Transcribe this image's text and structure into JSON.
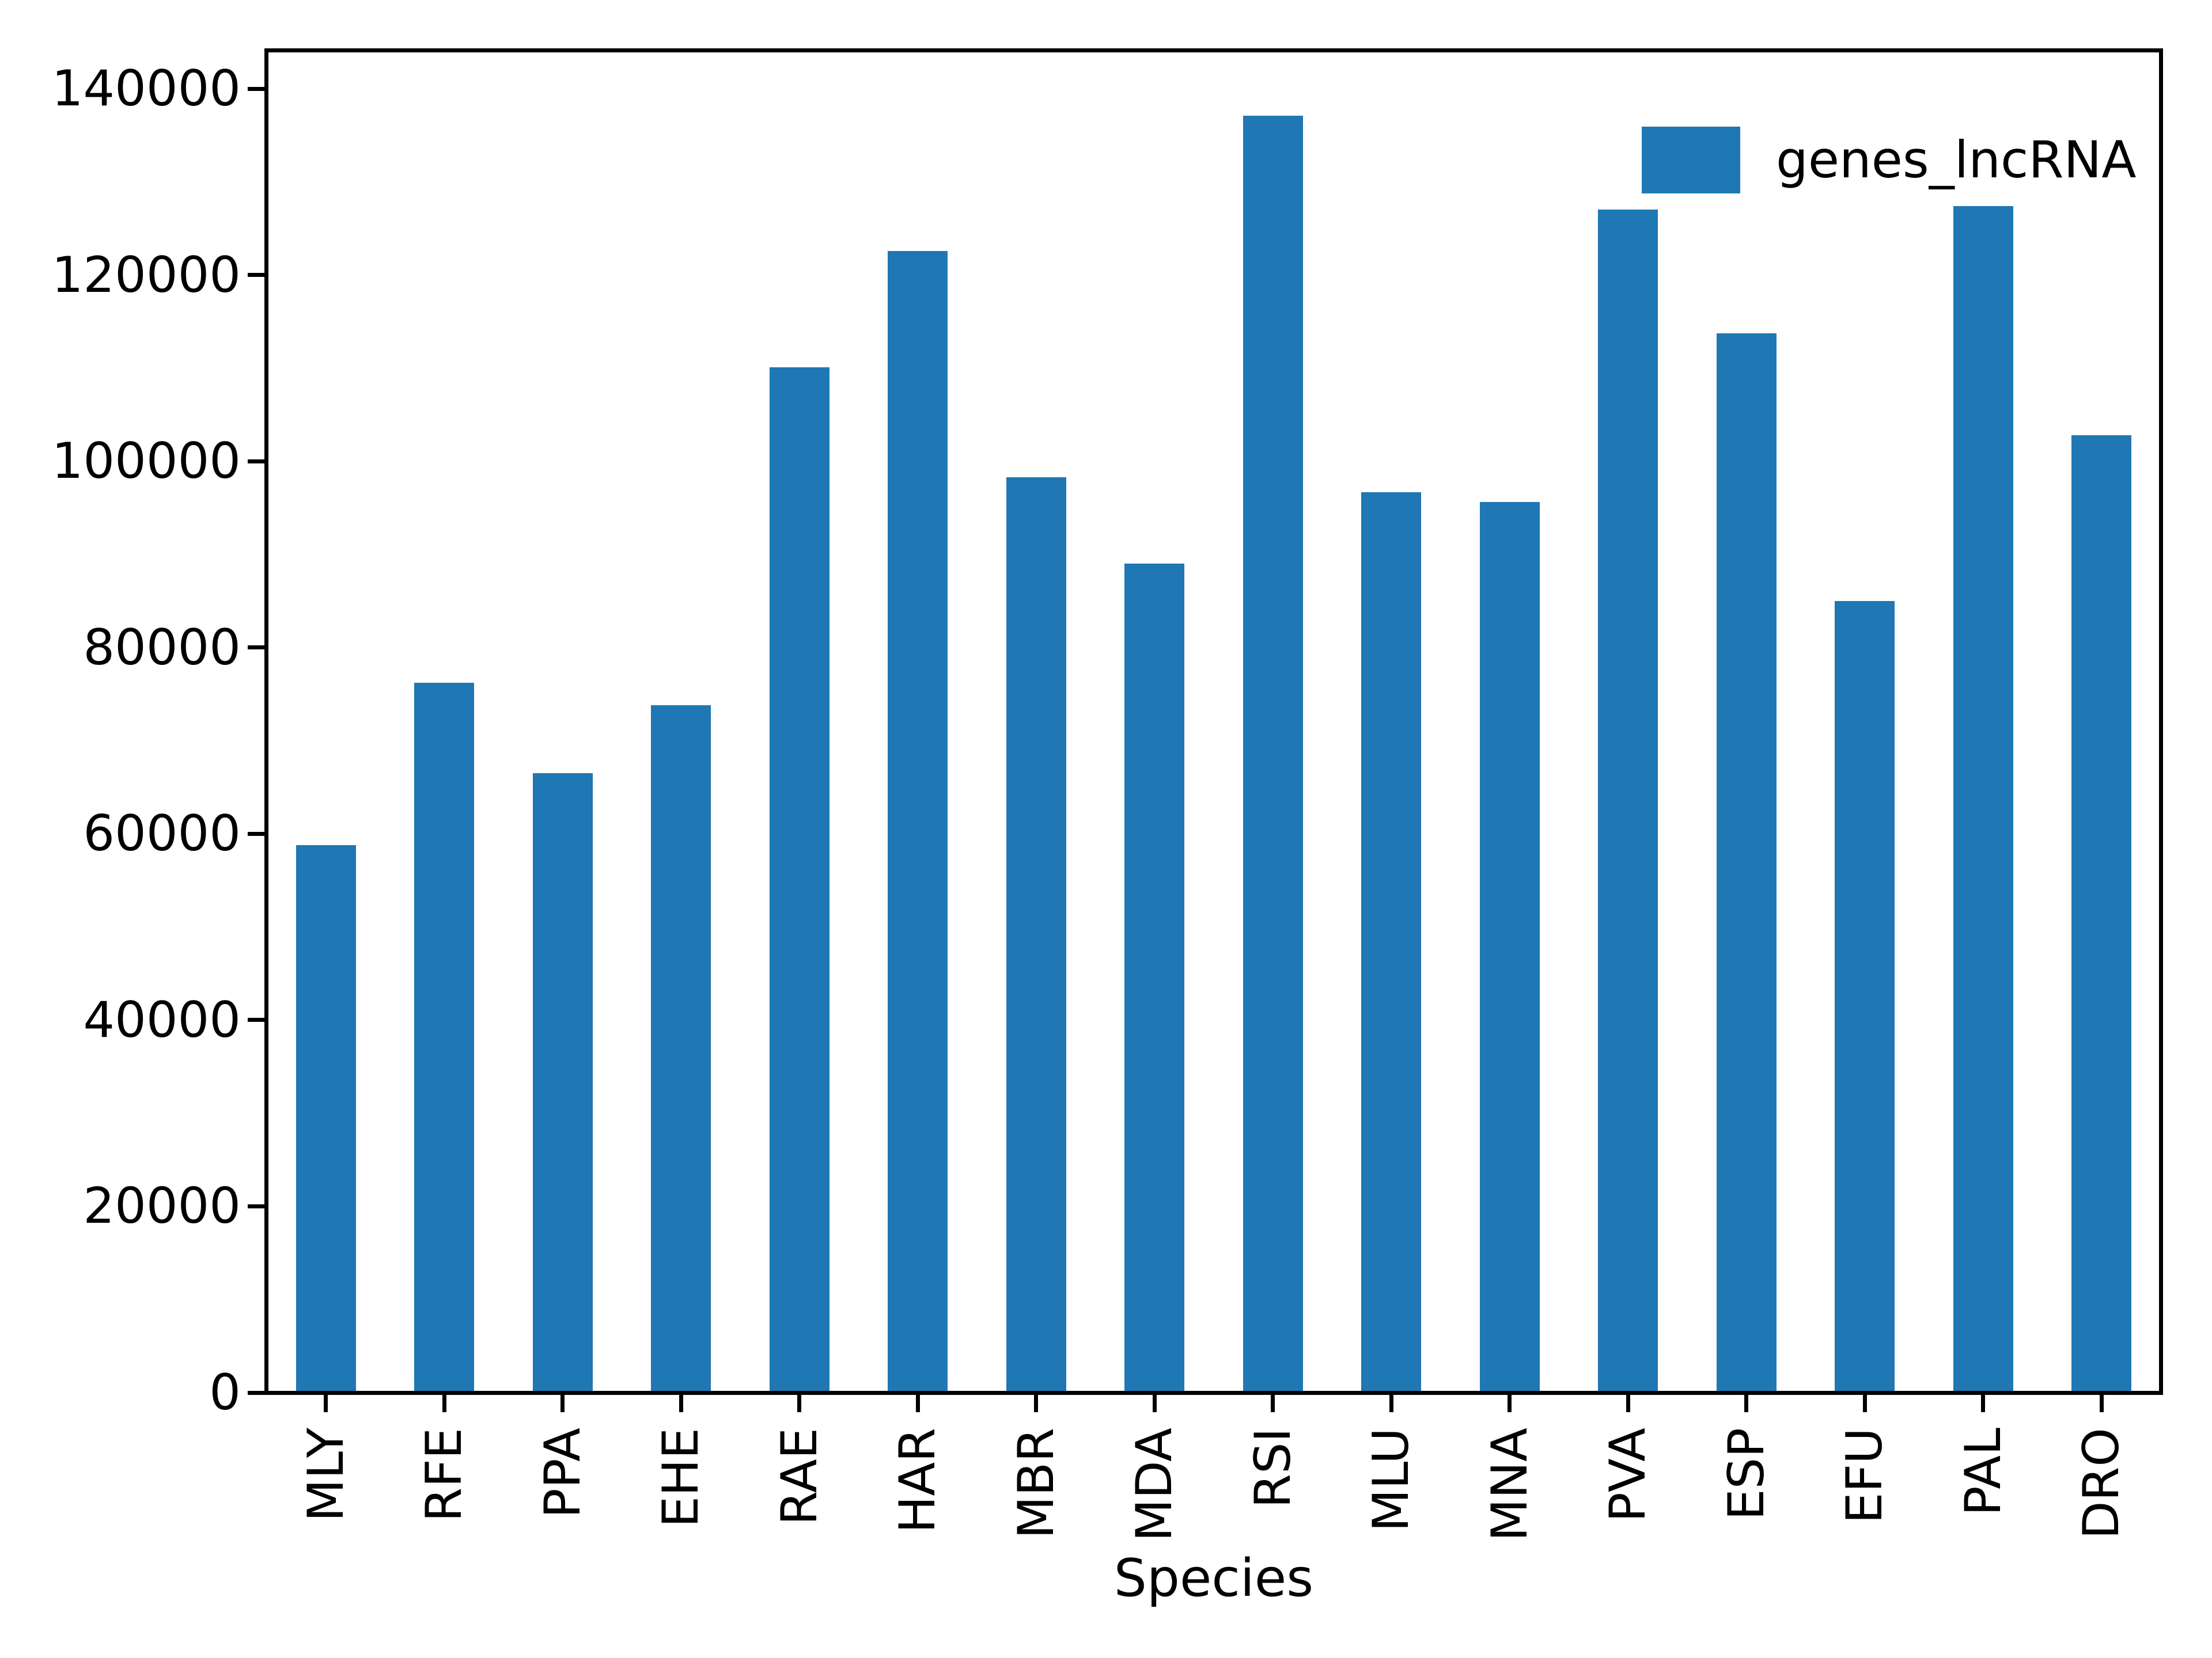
{
  "figure": {
    "background": "#ffffff",
    "x_axis_title": "Species"
  },
  "legend": {
    "label": "genes_lncRNA",
    "swatch_color": "#1f77b4",
    "position": "upper right",
    "frame": false
  },
  "chart_data": {
    "type": "bar",
    "title": "",
    "xlabel": "Species",
    "ylabel": "",
    "categories": [
      "MLY",
      "RFE",
      "PPA",
      "EHE",
      "RAE",
      "HAR",
      "MBR",
      "MDA",
      "RSI",
      "MLU",
      "MNA",
      "PVA",
      "ESP",
      "EFU",
      "PAL",
      "DRO"
    ],
    "series": [
      {
        "name": "genes_lncRNA",
        "color": "#1f77b4",
        "values": [
          58800,
          76200,
          66500,
          73800,
          110100,
          122600,
          98300,
          89000,
          137100,
          96700,
          95600,
          127000,
          113700,
          85000,
          127400,
          102800
        ]
      }
    ],
    "ylim": [
      0,
      140000
    ],
    "yticks": [
      0,
      20000,
      40000,
      60000,
      80000,
      100000,
      120000,
      140000
    ],
    "ytick_labels": [
      "0",
      "20000",
      "40000",
      "60000",
      "80000",
      "100000",
      "120000",
      "140000"
    ],
    "xtick_rotation": 90,
    "grid": false,
    "legend_position": "upper right",
    "bar_color": "#1f77b4",
    "spine_color": "#000000"
  }
}
